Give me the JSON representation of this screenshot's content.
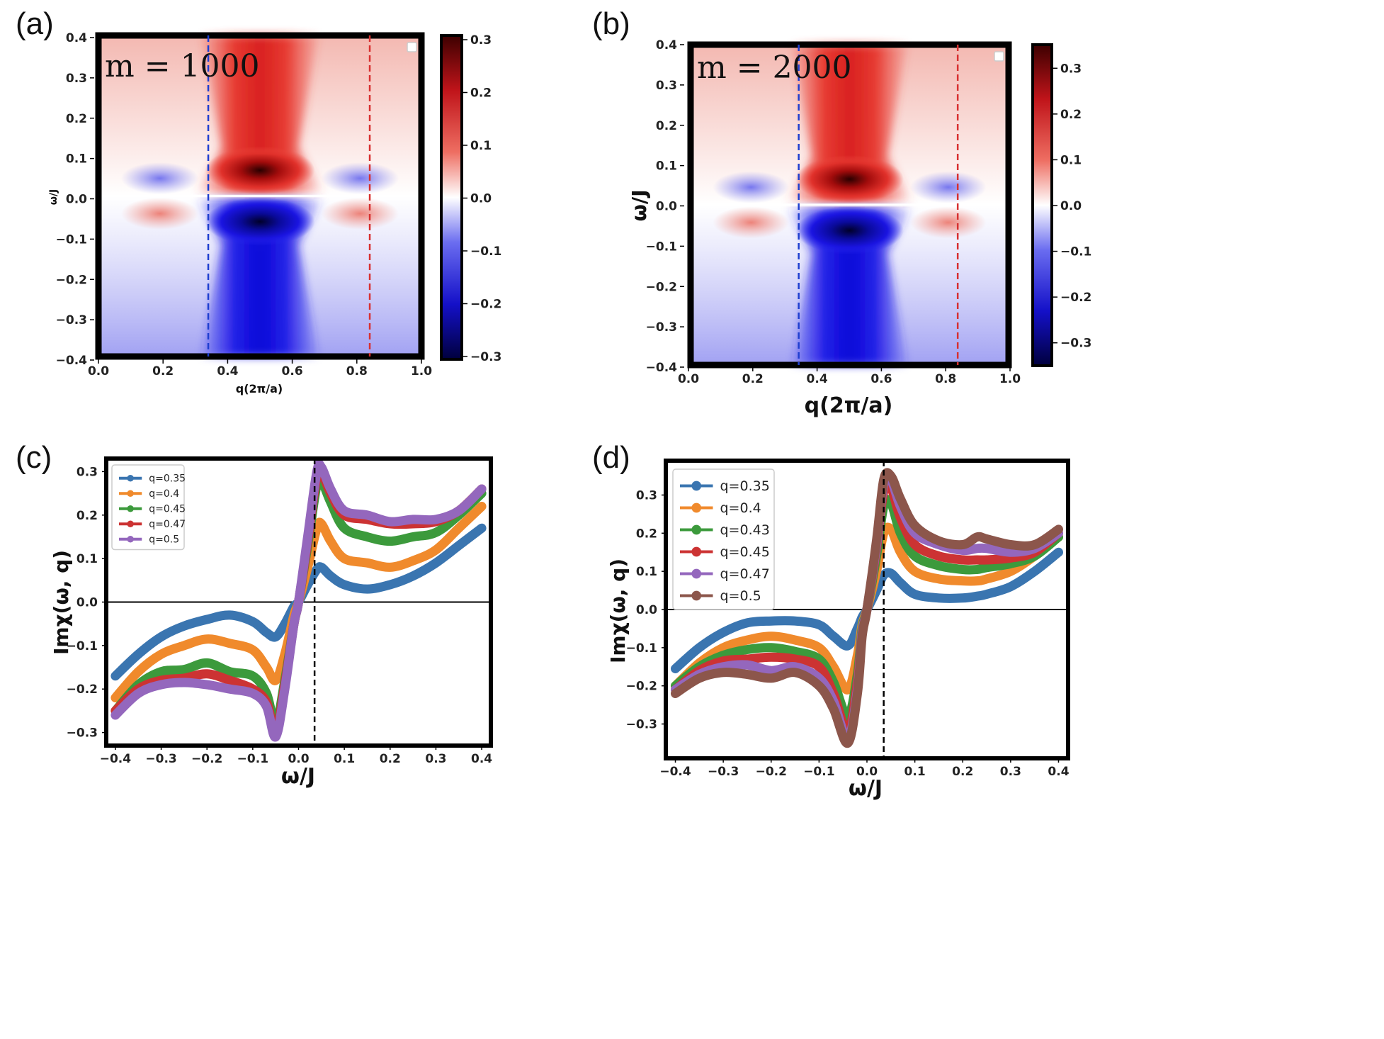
{
  "chart_data": [
    {
      "panel": "(a)",
      "type": "heatmap",
      "annotation": "m = 1000",
      "xlabel": "q(2π/a)",
      "ylabel": "ω/J",
      "xlim": [
        0.0,
        1.0
      ],
      "ylim": [
        -0.4,
        0.4
      ],
      "xticks": [
        "0.0",
        "0.2",
        "0.4",
        "0.6",
        "0.8",
        "1.0"
      ],
      "yticks": [
        "0.4",
        "0.3",
        "0.2",
        "0.1",
        "0.0",
        "−0.1",
        "−0.2",
        "−0.3",
        "−0.4"
      ],
      "colorbar": {
        "range": [
          -0.3,
          0.3
        ],
        "ticks": [
          "0.3",
          "0.2",
          "0.1",
          "0.0",
          "−0.1",
          "−0.2",
          "−0.3"
        ]
      },
      "vlines": [
        {
          "x": 0.34,
          "color": "#1f3fd0"
        },
        {
          "x": 0.84,
          "color": "#d83030"
        }
      ]
    },
    {
      "panel": "(b)",
      "type": "heatmap",
      "annotation": "m = 2000",
      "xlabel": "q(2π/a)",
      "ylabel": "ω/J",
      "xlim": [
        0.0,
        1.0
      ],
      "ylim": [
        -0.4,
        0.4
      ],
      "xticks": [
        "0.0",
        "0.2",
        "0.4",
        "0.6",
        "0.8",
        "1.0"
      ],
      "yticks": [
        "0.4",
        "0.3",
        "0.2",
        "0.1",
        "0.0",
        "−0.1",
        "−0.2",
        "−0.3",
        "−0.4"
      ],
      "colorbar": {
        "range": [
          -0.35,
          0.35
        ],
        "ticks": [
          "0.3",
          "0.2",
          "0.1",
          "0.0",
          "−0.1",
          "−0.2",
          "−0.3"
        ]
      },
      "vlines": [
        {
          "x": 0.34,
          "color": "#1f3fd0"
        },
        {
          "x": 0.84,
          "color": "#d83030"
        }
      ]
    },
    {
      "panel": "(c)",
      "type": "line",
      "xlabel": "ω/J",
      "ylabel": "Imχ(ω, q)",
      "xlim": [
        -0.42,
        0.42
      ],
      "ylim": [
        -0.33,
        0.33
      ],
      "xticks": [
        "−0.4",
        "−0.3",
        "−0.2",
        "−0.1",
        "0.0",
        "0.1",
        "0.2",
        "0.3",
        "0.4"
      ],
      "yticks": [
        "0.3",
        "0.2",
        "0.1",
        "0.0",
        "−0.1",
        "−0.2",
        "−0.3"
      ],
      "vline_x": 0.035,
      "x": [
        -0.4,
        -0.35,
        -0.3,
        -0.25,
        -0.2,
        -0.15,
        -0.1,
        -0.07,
        -0.05,
        -0.03,
        -0.01,
        0.0,
        0.02,
        0.04,
        0.05,
        0.07,
        0.1,
        0.15,
        0.2,
        0.25,
        0.3,
        0.35,
        0.4
      ],
      "series": [
        {
          "name": "q=0.35",
          "color": "#3a75b0",
          "values": [
            -0.17,
            -0.12,
            -0.08,
            -0.055,
            -0.04,
            -0.03,
            -0.045,
            -0.07,
            -0.08,
            -0.05,
            -0.01,
            0.0,
            0.04,
            0.075,
            0.08,
            0.06,
            0.04,
            0.03,
            0.04,
            0.06,
            0.09,
            0.13,
            0.17
          ]
        },
        {
          "name": "q=0.4",
          "color": "#f08a2c",
          "values": [
            -0.22,
            -0.16,
            -0.12,
            -0.1,
            -0.085,
            -0.095,
            -0.11,
            -0.15,
            -0.18,
            -0.12,
            -0.03,
            0.0,
            0.08,
            0.17,
            0.18,
            0.14,
            0.1,
            0.09,
            0.08,
            0.095,
            0.12,
            0.17,
            0.22
          ]
        },
        {
          "name": "q=0.45",
          "color": "#3c9a3c",
          "values": [
            -0.25,
            -0.19,
            -0.16,
            -0.155,
            -0.14,
            -0.16,
            -0.17,
            -0.21,
            -0.28,
            -0.18,
            -0.05,
            0.0,
            0.13,
            0.27,
            0.28,
            0.23,
            0.17,
            0.15,
            0.14,
            0.15,
            0.16,
            0.2,
            0.25
          ]
        },
        {
          "name": "q=0.47",
          "color": "#cc3333",
          "values": [
            -0.25,
            -0.2,
            -0.18,
            -0.175,
            -0.165,
            -0.18,
            -0.2,
            -0.23,
            -0.3,
            -0.19,
            -0.05,
            0.0,
            0.14,
            0.29,
            0.3,
            0.25,
            0.2,
            0.19,
            0.18,
            0.18,
            0.185,
            0.21,
            0.26
          ]
        },
        {
          "name": "q=0.5",
          "color": "#9467bd",
          "values": [
            -0.26,
            -0.21,
            -0.19,
            -0.185,
            -0.19,
            -0.2,
            -0.21,
            -0.24,
            -0.31,
            -0.2,
            -0.05,
            0.0,
            0.15,
            0.3,
            0.31,
            0.26,
            0.21,
            0.2,
            0.185,
            0.19,
            0.19,
            0.21,
            0.26
          ]
        }
      ]
    },
    {
      "panel": "(d)",
      "type": "line",
      "xlabel": "ω/J",
      "ylabel": "Imχ(ω, q)",
      "xlim": [
        -0.42,
        0.42
      ],
      "ylim": [
        -0.39,
        0.39
      ],
      "xticks": [
        "−0.4",
        "−0.3",
        "−0.2",
        "−0.1",
        "0.0",
        "0.1",
        "0.2",
        "0.3",
        "0.4"
      ],
      "yticks": [
        "0.3",
        "0.2",
        "0.1",
        "0.0",
        "−0.1",
        "−0.2",
        "−0.3"
      ],
      "vline_x": 0.035,
      "x": [
        -0.4,
        -0.35,
        -0.3,
        -0.25,
        -0.2,
        -0.15,
        -0.1,
        -0.07,
        -0.04,
        -0.02,
        -0.01,
        0.0,
        0.02,
        0.035,
        0.05,
        0.07,
        0.1,
        0.15,
        0.2,
        0.23,
        0.25,
        0.3,
        0.35,
        0.4
      ],
      "series": [
        {
          "name": "q=0.35",
          "color": "#3a75b0",
          "values": [
            -0.155,
            -0.1,
            -0.06,
            -0.035,
            -0.03,
            -0.03,
            -0.04,
            -0.07,
            -0.095,
            -0.05,
            -0.02,
            0.0,
            0.05,
            0.09,
            0.095,
            0.07,
            0.04,
            0.03,
            0.03,
            0.035,
            0.04,
            0.06,
            0.1,
            0.15
          ]
        },
        {
          "name": "q=0.4",
          "color": "#f08a2c",
          "values": [
            -0.2,
            -0.14,
            -0.1,
            -0.08,
            -0.07,
            -0.08,
            -0.1,
            -0.15,
            -0.21,
            -0.12,
            -0.04,
            0.0,
            0.1,
            0.2,
            0.21,
            0.15,
            0.1,
            0.08,
            0.075,
            0.075,
            0.08,
            0.1,
            0.14,
            0.19
          ]
        },
        {
          "name": "q=0.43",
          "color": "#3c9a3c",
          "values": [
            -0.2,
            -0.15,
            -0.12,
            -0.105,
            -0.1,
            -0.11,
            -0.13,
            -0.19,
            -0.28,
            -0.17,
            -0.05,
            0.0,
            0.14,
            0.27,
            0.28,
            0.2,
            0.14,
            0.115,
            0.105,
            0.105,
            0.11,
            0.12,
            0.14,
            0.19
          ]
        },
        {
          "name": "q=0.45",
          "color": "#cc3333",
          "values": [
            -0.21,
            -0.16,
            -0.135,
            -0.13,
            -0.125,
            -0.13,
            -0.15,
            -0.22,
            -0.32,
            -0.19,
            -0.06,
            0.0,
            0.16,
            0.31,
            0.32,
            0.24,
            0.17,
            0.14,
            0.13,
            0.13,
            0.13,
            0.135,
            0.15,
            0.2
          ]
        },
        {
          "name": "q=0.47",
          "color": "#9467bd",
          "values": [
            -0.21,
            -0.17,
            -0.15,
            -0.145,
            -0.16,
            -0.15,
            -0.18,
            -0.24,
            -0.34,
            -0.21,
            -0.06,
            0.0,
            0.17,
            0.33,
            0.34,
            0.27,
            0.2,
            0.17,
            0.155,
            0.16,
            0.16,
            0.15,
            0.16,
            0.2
          ]
        },
        {
          "name": "q=0.5",
          "color": "#8c564b",
          "values": [
            -0.22,
            -0.18,
            -0.165,
            -0.17,
            -0.18,
            -0.165,
            -0.2,
            -0.26,
            -0.35,
            -0.22,
            -0.07,
            0.0,
            0.18,
            0.34,
            0.35,
            0.29,
            0.22,
            0.18,
            0.17,
            0.19,
            0.185,
            0.17,
            0.17,
            0.21
          ]
        }
      ]
    }
  ]
}
